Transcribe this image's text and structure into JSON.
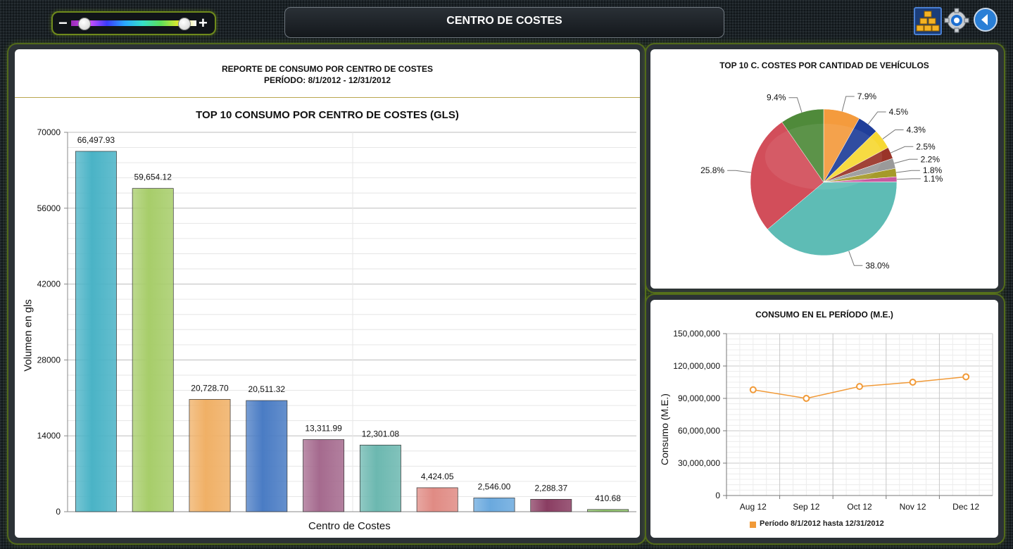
{
  "header": {
    "title": "CENTRO DE COSTES",
    "zoom_minus": "−",
    "zoom_plus": "+",
    "zoom_level": {
      "low": 0.1,
      "high": 0.9
    },
    "icons": [
      "hierarchy-icon",
      "settings-gear-icon",
      "back-arrow-icon"
    ]
  },
  "main_panel": {
    "report_title": "REPORTE DE CONSUMO POR CENTRO DE COSTES",
    "report_period": "PERÍODO: 8/1/2012 - 12/31/2012"
  },
  "chart_data": [
    {
      "type": "bar",
      "title": "TOP 10 CONSUMO POR CENTRO DE COSTES (GLS)",
      "xlabel": "Centro de Costes",
      "ylabel": "Volumen en gls",
      "ylim": [
        0,
        70000
      ],
      "yticks": [
        "0",
        "14000",
        "28000",
        "42000",
        "56000",
        "70000"
      ],
      "values": [
        66497.93,
        59654.12,
        20728.7,
        20511.32,
        13311.99,
        12301.08,
        4424.05,
        2546.0,
        2288.37,
        410.68
      ],
      "value_labels": [
        "66,497.93",
        "59,654.12",
        "20,728.70",
        "20,511.32",
        "13,311.99",
        "12,301.08",
        "4,424.05",
        "2,546.00",
        "2,288.37",
        "410.68"
      ],
      "colors": [
        "#4ab3c6",
        "#a7cd6a",
        "#f0b066",
        "#4a7cc4",
        "#a56a8e",
        "#6cb8b0",
        "#e08b84",
        "#6aa9de",
        "#8a3d62",
        "#8fc46a"
      ],
      "grid": true
    },
    {
      "type": "pie",
      "title": "TOP 10 C. COSTES POR CANTIDAD DE VEHÍCULOS",
      "values": [
        7.9,
        4.5,
        4.3,
        2.5,
        2.2,
        1.8,
        1.1,
        38.0,
        25.8,
        9.4
      ],
      "labels": [
        "7.9%",
        "4.5%",
        "4.3%",
        "2.5%",
        "2.2%",
        "1.8%",
        "1.1%",
        "38.0%",
        "25.8%",
        "9.4%"
      ],
      "colors": [
        "#f49b3d",
        "#1f3e9a",
        "#f7d832",
        "#9a3428",
        "#9a9a9a",
        "#a59a2a",
        "#c85aa0",
        "#5ebcb5",
        "#d24e5a",
        "#4f8a3a"
      ]
    },
    {
      "type": "line",
      "title": "CONSUMO EN EL PERÍODO (M.E.)",
      "ylabel": "Consumo (M.E.)",
      "categories": [
        "Aug 12",
        "Sep 12",
        "Oct 12",
        "Nov 12",
        "Dec 12"
      ],
      "ylim": [
        0,
        150000000
      ],
      "yticks": [
        "0",
        "30,000,000",
        "60,000,000",
        "90,000,000",
        "120,000,000",
        "150,000,000"
      ],
      "series": [
        {
          "name": "Período 8/1/2012 hasta 12/31/2012",
          "values": [
            98000000,
            90000000,
            101000000,
            105000000,
            110000000
          ],
          "color": "#f19a38"
        }
      ],
      "legend": "bottom",
      "grid": true
    }
  ]
}
